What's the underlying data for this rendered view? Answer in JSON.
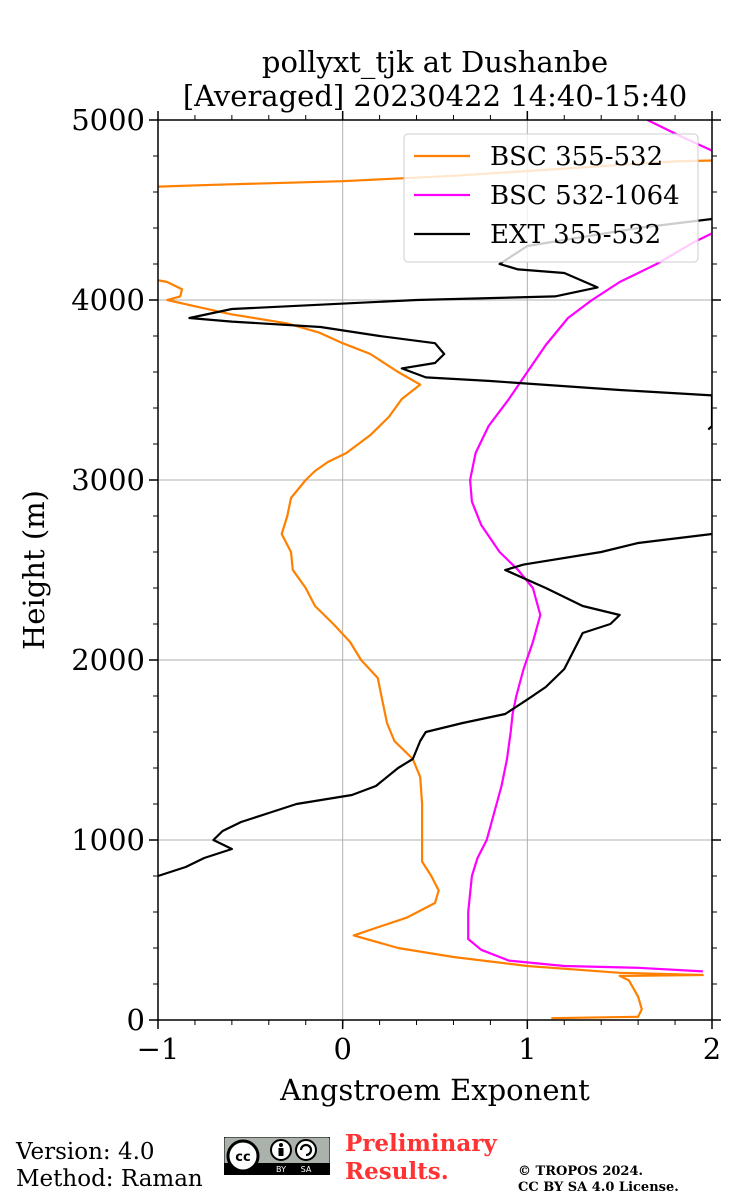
{
  "chart_data": {
    "type": "line",
    "title": "pollyxt_tjk at Dushanbe",
    "subtitle": "[Averaged] 20230422 14:40-15:40",
    "xlabel": "Angstroem Exponent",
    "ylabel": "Height (m)",
    "xlim": [
      -1,
      2
    ],
    "ylim": [
      0,
      5000
    ],
    "x_ticks": [
      "−1",
      "0",
      "1",
      "2"
    ],
    "y_ticks": [
      "0",
      "1000",
      "2000",
      "3000",
      "4000",
      "5000"
    ],
    "grid": true,
    "legend_position": "top-right",
    "series": [
      {
        "name": "BSC 355-532",
        "color": "#ff8000",
        "points": [
          [
            1.13,
            10
          ],
          [
            1.6,
            18
          ],
          [
            1.62,
            60
          ],
          [
            1.6,
            130
          ],
          [
            1.55,
            220
          ],
          [
            1.5,
            245
          ],
          [
            1.95,
            250
          ],
          [
            1.5,
            262
          ],
          [
            1.0,
            300
          ],
          [
            0.6,
            350
          ],
          [
            0.3,
            400
          ],
          [
            0.06,
            470
          ],
          [
            0.35,
            570
          ],
          [
            0.5,
            650
          ],
          [
            0.52,
            720
          ],
          [
            0.48,
            800
          ],
          [
            0.43,
            880
          ],
          [
            0.43,
            1000
          ],
          [
            0.43,
            1200
          ],
          [
            0.42,
            1350
          ],
          [
            0.38,
            1450
          ],
          [
            0.28,
            1550
          ],
          [
            0.24,
            1650
          ],
          [
            0.21,
            1800
          ],
          [
            0.19,
            1900
          ],
          [
            0.1,
            2000
          ],
          [
            0.04,
            2100
          ],
          [
            -0.05,
            2200
          ],
          [
            -0.15,
            2300
          ],
          [
            -0.2,
            2400
          ],
          [
            -0.27,
            2500
          ],
          [
            -0.28,
            2600
          ],
          [
            -0.33,
            2700
          ],
          [
            -0.3,
            2800
          ],
          [
            -0.28,
            2900
          ],
          [
            -0.2,
            3000
          ],
          [
            -0.15,
            3050
          ],
          [
            -0.08,
            3100
          ],
          [
            0.02,
            3150
          ],
          [
            0.15,
            3250
          ],
          [
            0.25,
            3350
          ],
          [
            0.32,
            3450
          ],
          [
            0.42,
            3530
          ],
          [
            0.3,
            3600
          ],
          [
            0.15,
            3700
          ],
          [
            0.0,
            3760
          ],
          [
            -0.13,
            3820
          ],
          [
            -0.3,
            3870
          ],
          [
            -0.6,
            3920
          ],
          [
            -0.82,
            3970
          ],
          [
            -0.95,
            4000
          ],
          [
            -0.88,
            4020
          ],
          [
            -0.87,
            4060
          ],
          [
            -0.95,
            4100
          ],
          [
            -1.0,
            4110
          ]
        ]
      },
      {
        "name": "BSC 532-1064",
        "color": "#ff00ff",
        "points": [
          [
            1.95,
            270
          ],
          [
            1.6,
            290
          ],
          [
            1.2,
            300
          ],
          [
            0.9,
            330
          ],
          [
            0.75,
            390
          ],
          [
            0.68,
            450
          ],
          [
            0.68,
            600
          ],
          [
            0.7,
            800
          ],
          [
            0.73,
            900
          ],
          [
            0.78,
            1000
          ],
          [
            0.82,
            1150
          ],
          [
            0.86,
            1300
          ],
          [
            0.89,
            1450
          ],
          [
            0.91,
            1600
          ],
          [
            0.92,
            1700
          ],
          [
            0.94,
            1800
          ],
          [
            0.98,
            1950
          ],
          [
            1.03,
            2100
          ],
          [
            1.07,
            2250
          ],
          [
            1.03,
            2400
          ],
          [
            0.95,
            2500
          ],
          [
            0.85,
            2600
          ],
          [
            0.75,
            2750
          ],
          [
            0.7,
            2880
          ],
          [
            0.69,
            3000
          ],
          [
            0.72,
            3150
          ],
          [
            0.79,
            3300
          ],
          [
            0.9,
            3450
          ],
          [
            1.0,
            3600
          ],
          [
            1.1,
            3750
          ],
          [
            1.22,
            3900
          ],
          [
            1.35,
            4000
          ],
          [
            1.5,
            4100
          ],
          [
            1.7,
            4200
          ],
          [
            1.9,
            4320
          ],
          [
            2.0,
            4370
          ]
        ]
      },
      {
        "name": "EXT 355-532",
        "color": "#000000",
        "points": [
          [
            -1.0,
            800
          ],
          [
            -0.85,
            850
          ],
          [
            -0.75,
            900
          ],
          [
            -0.6,
            950
          ],
          [
            -0.7,
            1000
          ],
          [
            -0.65,
            1050
          ],
          [
            -0.55,
            1100
          ],
          [
            -0.4,
            1150
          ],
          [
            -0.25,
            1200
          ],
          [
            0.05,
            1250
          ],
          [
            0.18,
            1300
          ],
          [
            0.3,
            1400
          ],
          [
            0.38,
            1450
          ],
          [
            0.42,
            1550
          ],
          [
            0.45,
            1600
          ],
          [
            0.65,
            1650
          ],
          [
            0.88,
            1700
          ],
          [
            1.0,
            1780
          ],
          [
            1.1,
            1850
          ],
          [
            1.2,
            1950
          ],
          [
            1.25,
            2050
          ],
          [
            1.3,
            2150
          ],
          [
            1.45,
            2200
          ],
          [
            1.5,
            2250
          ],
          [
            1.3,
            2300
          ],
          [
            1.1,
            2400
          ],
          [
            0.88,
            2500
          ],
          [
            0.98,
            2530
          ],
          [
            1.4,
            2600
          ],
          [
            1.6,
            2650
          ],
          [
            2.0,
            2700
          ]
        ]
      },
      {
        "name": "",
        "color": "#000000",
        "points": [
          [
            1.98,
            3280
          ],
          [
            2.0,
            3300
          ],
          [
            2.0,
            3470
          ],
          [
            1.5,
            3500
          ],
          [
            0.8,
            3550
          ],
          [
            0.45,
            3570
          ],
          [
            0.32,
            3620
          ],
          [
            0.5,
            3650
          ],
          [
            0.55,
            3700
          ],
          [
            0.5,
            3760
          ],
          [
            0.2,
            3800
          ],
          [
            -0.12,
            3850
          ],
          [
            -0.6,
            3880
          ],
          [
            -0.83,
            3900
          ],
          [
            -0.6,
            3950
          ],
          [
            0.4,
            4000
          ],
          [
            1.15,
            4020
          ],
          [
            1.38,
            4070
          ],
          [
            1.2,
            4150
          ],
          [
            0.95,
            4170
          ],
          [
            0.85,
            4200
          ],
          [
            1.0,
            4300
          ],
          [
            1.6,
            4400
          ],
          [
            2.0,
            4450
          ]
        ]
      },
      {
        "name": "",
        "color": "#ff8000",
        "points": [
          [
            -1.0,
            4630
          ],
          [
            -0.7,
            4640
          ],
          [
            0.0,
            4660
          ],
          [
            0.6,
            4690
          ],
          [
            1.2,
            4730
          ],
          [
            1.8,
            4770
          ],
          [
            2.0,
            4775
          ]
        ]
      },
      {
        "name": "",
        "color": "#ff00ff",
        "points": [
          [
            1.65,
            5000
          ],
          [
            1.85,
            4900
          ],
          [
            2.0,
            4830
          ]
        ]
      }
    ]
  },
  "footer": {
    "version": "Version: 4.0",
    "method": "Method: Raman",
    "preliminary_line1": "Preliminary",
    "preliminary_line2": "Results.",
    "copyright_line1": "© TROPOS 2024.",
    "copyright_line2": "CC BY SA 4.0 License.",
    "cc_badge": [
      "cc",
      "BY",
      "SA"
    ]
  }
}
